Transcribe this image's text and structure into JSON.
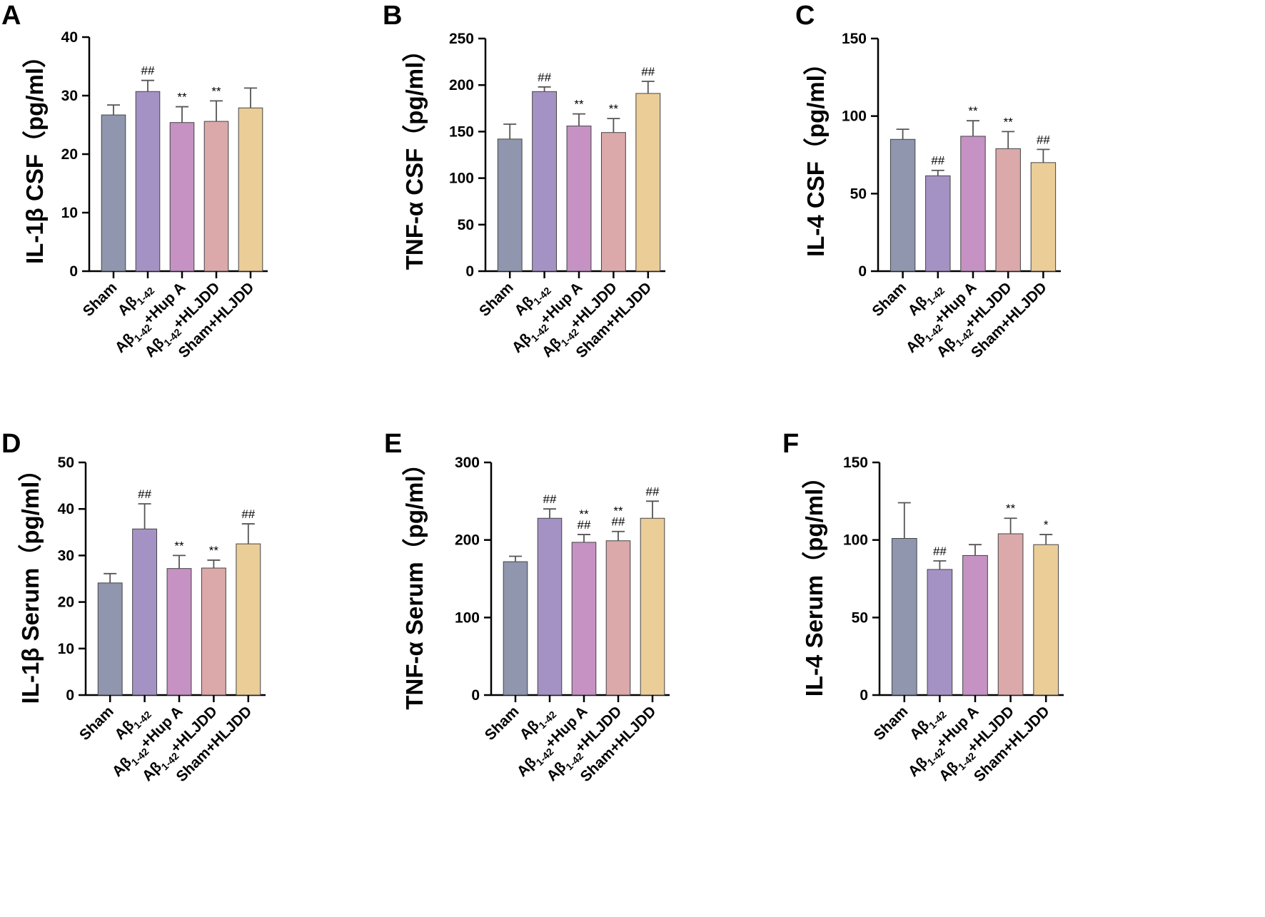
{
  "colors": [
    "#8f96ae",
    "#a592c4",
    "#c592c3",
    "#dba9aa",
    "#ebcd98"
  ],
  "chart_data": [
    {
      "type": "bar",
      "panel_label": "A",
      "ylabel": "IL-1β  CSF（pg/ml）",
      "ylim": [
        0,
        40
      ],
      "yticks": [
        0,
        10,
        20,
        30,
        40
      ],
      "categories": [
        {
          "label": "Sham"
        },
        {
          "label": "Aβ",
          "sub": "1-42",
          "suffix": ""
        },
        {
          "label": "Aβ",
          "sub": "1-42",
          "suffix": "+Hup A"
        },
        {
          "label": "Aβ",
          "sub": "1-42",
          "suffix": "+HLJDD"
        },
        {
          "label": "Sham+HLJDD"
        }
      ],
      "values": [
        26.7,
        30.7,
        25.4,
        25.6,
        27.9
      ],
      "errors": [
        1.7,
        1.9,
        2.7,
        3.5,
        3.4
      ],
      "annotations": [
        [],
        [
          "##"
        ],
        [
          "**"
        ],
        [
          "**"
        ],
        []
      ]
    },
    {
      "type": "bar",
      "panel_label": "B",
      "ylabel": "TNF-α  CSF（pg/ml）",
      "ylim": [
        0,
        250
      ],
      "yticks": [
        0,
        50,
        100,
        150,
        200,
        250
      ],
      "categories": [
        {
          "label": "Sham"
        },
        {
          "label": "Aβ",
          "sub": "1-42",
          "suffix": ""
        },
        {
          "label": "Aβ",
          "sub": "1-42",
          "suffix": "+Hup A"
        },
        {
          "label": "Aβ",
          "sub": "1-42",
          "suffix": "+HLJDD"
        },
        {
          "label": "Sham+HLJDD"
        }
      ],
      "values": [
        142,
        193,
        156,
        149,
        191
      ],
      "errors": [
        16,
        5,
        13,
        15,
        13
      ],
      "annotations": [
        [],
        [
          "##"
        ],
        [
          "**"
        ],
        [
          "**"
        ],
        [
          "##"
        ]
      ]
    },
    {
      "type": "bar",
      "panel_label": "C",
      "ylabel": "IL-4  CSF（pg/ml）",
      "ylim": [
        0,
        150
      ],
      "yticks": [
        0,
        50,
        100,
        150
      ],
      "categories": [
        {
          "label": "Sham"
        },
        {
          "label": "Aβ",
          "sub": "1-42",
          "suffix": ""
        },
        {
          "label": "Aβ",
          "sub": "1-42",
          "suffix": "+Hup A"
        },
        {
          "label": "Aβ",
          "sub": "1-42",
          "suffix": "+HLJDD"
        },
        {
          "label": "Sham+HLJDD"
        }
      ],
      "values": [
        85,
        61.5,
        87,
        79,
        70
      ],
      "errors": [
        6.5,
        3.5,
        10,
        11,
        8.5
      ],
      "annotations": [
        [],
        [
          "##"
        ],
        [
          "**"
        ],
        [
          "**"
        ],
        [
          "##"
        ]
      ]
    },
    {
      "type": "bar",
      "panel_label": "D",
      "ylabel": "IL-1β  Serum（pg/ml）",
      "ylim": [
        0,
        50
      ],
      "yticks": [
        0,
        10,
        20,
        30,
        40,
        50
      ],
      "categories": [
        {
          "label": "Sham"
        },
        {
          "label": "Aβ",
          "sub": "1-42",
          "suffix": ""
        },
        {
          "label": "Aβ",
          "sub": "1-42",
          "suffix": "+Hup A"
        },
        {
          "label": "Aβ",
          "sub": "1-42",
          "suffix": "+HLJDD"
        },
        {
          "label": "Sham+HLJDD"
        }
      ],
      "values": [
        24.1,
        35.7,
        27.2,
        27.3,
        32.5
      ],
      "errors": [
        2.0,
        5.4,
        2.8,
        1.7,
        4.3
      ],
      "annotations": [
        [],
        [
          "##"
        ],
        [
          "**"
        ],
        [
          "**"
        ],
        [
          "##"
        ]
      ]
    },
    {
      "type": "bar",
      "panel_label": "E",
      "ylabel": "TNF-α  Serum（pg/ml）",
      "ylim": [
        0,
        300
      ],
      "yticks": [
        0,
        100,
        200,
        300
      ],
      "categories": [
        {
          "label": "Sham"
        },
        {
          "label": "Aβ",
          "sub": "1-42",
          "suffix": ""
        },
        {
          "label": "Aβ",
          "sub": "1-42",
          "suffix": "+Hup A"
        },
        {
          "label": "Aβ",
          "sub": "1-42",
          "suffix": "+HLJDD"
        },
        {
          "label": "Sham+HLJDD"
        }
      ],
      "values": [
        172,
        228,
        197,
        199,
        228
      ],
      "errors": [
        7,
        12,
        10,
        12,
        22
      ],
      "annotations": [
        [],
        [
          "##"
        ],
        [
          "**",
          "##"
        ],
        [
          "**",
          "##"
        ],
        [
          "##"
        ]
      ]
    },
    {
      "type": "bar",
      "panel_label": "F",
      "ylabel": "IL-4  Serum（pg/ml）",
      "ylim": [
        0,
        150
      ],
      "yticks": [
        0,
        50,
        100,
        150
      ],
      "categories": [
        {
          "label": "Sham"
        },
        {
          "label": "Aβ",
          "sub": "1-42",
          "suffix": ""
        },
        {
          "label": "Aβ",
          "sub": "1-42",
          "suffix": "+Hup A"
        },
        {
          "label": "Aβ",
          "sub": "1-42",
          "suffix": "+HLJDD"
        },
        {
          "label": "Sham+HLJDD"
        }
      ],
      "values": [
        101,
        81,
        90,
        104,
        97
      ],
      "errors": [
        23,
        5.5,
        7,
        10,
        6.5
      ],
      "annotations": [
        [],
        [
          "##"
        ],
        [],
        [
          "**"
        ],
        [
          "*"
        ]
      ]
    }
  ]
}
